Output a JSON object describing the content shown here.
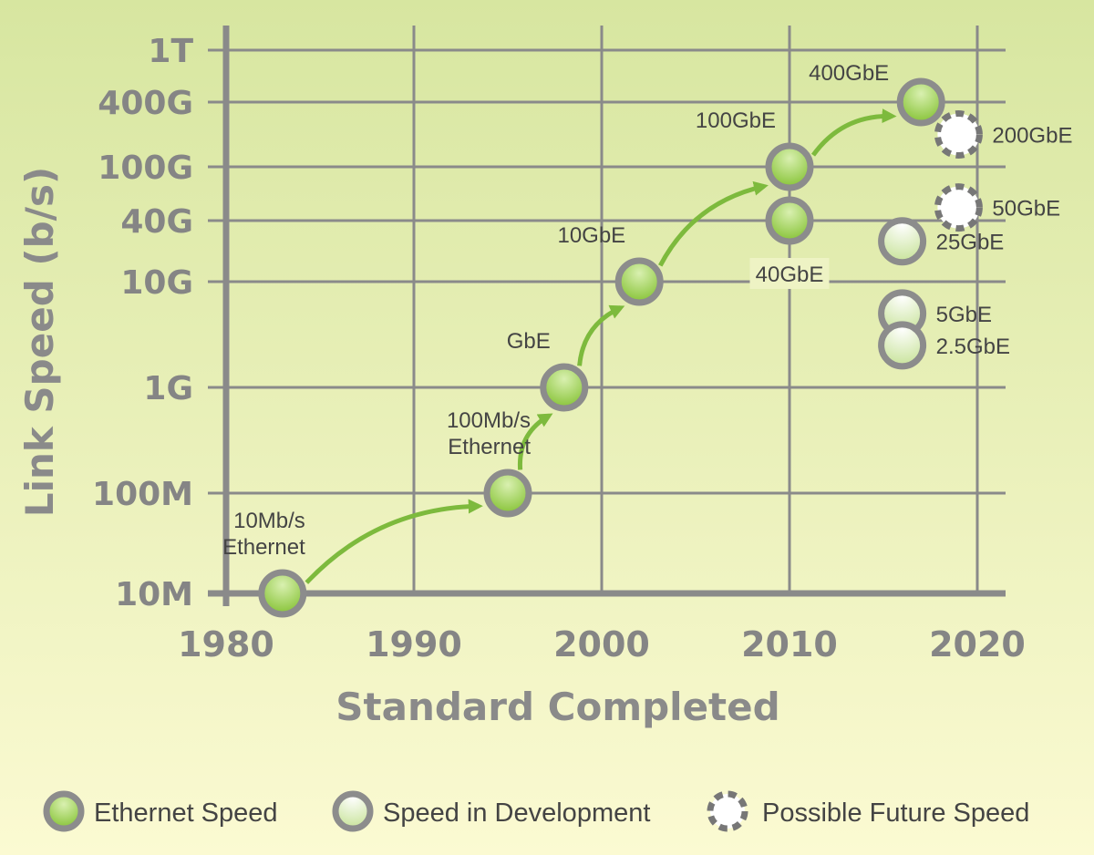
{
  "colors": {
    "grid": "#8a8a8a",
    "arrow": "#7dba3d",
    "ethernet_fill": "#8cc63f",
    "marker_stroke": "#8c8c8c",
    "future_stroke": "#777777",
    "background_top": "#d7e6a0",
    "background_bottom": "#fbfad2"
  },
  "chart_data": {
    "type": "scatter",
    "title": "",
    "xlabel": "Standard Completed",
    "ylabel": "Link Speed (b/s)",
    "y_scale": "log",
    "x_ticks": [
      {
        "value": 1980,
        "label": "1980"
      },
      {
        "value": 1990,
        "label": "1990"
      },
      {
        "value": 2000,
        "label": "2000"
      },
      {
        "value": 2010,
        "label": "2010"
      },
      {
        "value": 2020,
        "label": "2020"
      }
    ],
    "y_ticks": [
      {
        "value": 10000000.0,
        "label": "10M"
      },
      {
        "value": 100000000.0,
        "label": "100M"
      },
      {
        "value": 1000000000.0,
        "label": "1G"
      },
      {
        "value": 10000000000.0,
        "label": "10G"
      },
      {
        "value": 40000000000.0,
        "label": "40G"
      },
      {
        "value": 100000000000.0,
        "label": "100G"
      },
      {
        "value": 400000000000.0,
        "label": "400G"
      },
      {
        "value": 1000000000000.0,
        "label": "1T"
      }
    ],
    "xlim": [
      1980,
      2020
    ],
    "ylim": [
      10000000.0,
      1000000000000.0
    ],
    "grid": true,
    "legend_position": "bottom",
    "legend": [
      {
        "key": "ethernet",
        "label": "Ethernet Speed"
      },
      {
        "key": "development",
        "label": "Speed in Development"
      },
      {
        "key": "future",
        "label": "Possible Future Speed"
      }
    ],
    "points": [
      {
        "label": "10Mb/s\nEthernet",
        "x": 1983,
        "y": 10000000.0,
        "kind": "ethernet",
        "label_pos": "above-left"
      },
      {
        "label": "100Mb/s\nEthernet",
        "x": 1995,
        "y": 100000000.0,
        "kind": "ethernet",
        "label_pos": "above-left"
      },
      {
        "label": "GbE",
        "x": 1998,
        "y": 1000000000.0,
        "kind": "ethernet",
        "label_pos": "above-left"
      },
      {
        "label": "10GbE",
        "x": 2002,
        "y": 10000000000.0,
        "kind": "ethernet",
        "label_pos": "above-left"
      },
      {
        "label": "40GbE",
        "x": 2010,
        "y": 40000000000.0,
        "kind": "ethernet",
        "label_pos": "below"
      },
      {
        "label": "100GbE",
        "x": 2010,
        "y": 100000000000.0,
        "kind": "ethernet",
        "label_pos": "above-left"
      },
      {
        "label": "400GbE",
        "x": 2017,
        "y": 400000000000.0,
        "kind": "ethernet",
        "label_pos": "left"
      },
      {
        "label": "200GbE",
        "x": 2019,
        "y": 200000000000.0,
        "kind": "future",
        "label_pos": "right"
      },
      {
        "label": "50GbE",
        "x": 2019,
        "y": 50000000000.0,
        "kind": "future",
        "label_pos": "right"
      },
      {
        "label": "25GbE",
        "x": 2016,
        "y": 25000000000.0,
        "kind": "development",
        "label_pos": "right"
      },
      {
        "label": "5GbE",
        "x": 2016,
        "y": 5000000000.0,
        "kind": "development",
        "label_pos": "right"
      },
      {
        "label": "2.5GbE",
        "x": 2016,
        "y": 2500000000.0,
        "kind": "development",
        "label_pos": "right"
      }
    ],
    "arrows": [
      {
        "from": 0,
        "to": 1
      },
      {
        "from": 1,
        "to": 2
      },
      {
        "from": 2,
        "to": 3
      },
      {
        "from": 3,
        "to": 5
      },
      {
        "from": 5,
        "to": 6
      }
    ]
  }
}
